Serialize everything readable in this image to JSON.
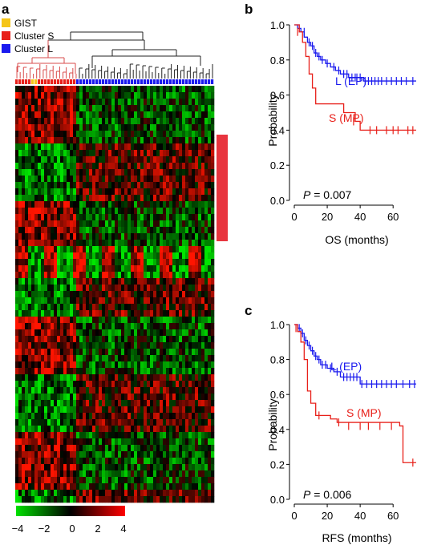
{
  "panel_a": {
    "letter": "a",
    "legend": [
      {
        "label": "GIST",
        "color": "#f5c518"
      },
      {
        "label": "Cluster S",
        "color": "#e8201a"
      },
      {
        "label": "Cluster L",
        "color": "#1a1aee"
      }
    ],
    "colorbar": {
      "ticks": [
        "−4",
        "−2",
        "0",
        "2",
        "4"
      ],
      "min": -4,
      "max": 4,
      "low_color": "#00e000",
      "mid_color": "#000000",
      "high_color": "#ff0000"
    },
    "highlight_bar_color": "#e8353f"
  },
  "chart_data": [
    {
      "panel": "b",
      "type": "line",
      "subtype": "kaplan-meier",
      "xlabel": "OS (months)",
      "ylabel": "Probability",
      "xlim": [
        0,
        75
      ],
      "ylim": [
        0,
        1.0
      ],
      "xticks": [
        "0",
        "20",
        "40",
        "60"
      ],
      "yticks": [
        "0.0",
        "0.2",
        "0.4",
        "0.6",
        "0.8",
        "1.0"
      ],
      "annotation_p": "P",
      "annotation_value": " = 0.007",
      "series": [
        {
          "name": "L (EP)",
          "color": "#1a1aee",
          "steps": [
            [
              0,
              1.0
            ],
            [
              2,
              0.98
            ],
            [
              4,
              0.96
            ],
            [
              6,
              0.93
            ],
            [
              8,
              0.9
            ],
            [
              10,
              0.88
            ],
            [
              12,
              0.84
            ],
            [
              14,
              0.82
            ],
            [
              16,
              0.8
            ],
            [
              19,
              0.78
            ],
            [
              22,
              0.76
            ],
            [
              25,
              0.74
            ],
            [
              28,
              0.72
            ],
            [
              33,
              0.7
            ],
            [
              42,
              0.68
            ],
            [
              74,
              0.68
            ]
          ],
          "censors": [
            [
              3,
              0.98
            ],
            [
              6,
              0.96
            ],
            [
              9,
              0.9
            ],
            [
              11,
              0.88
            ],
            [
              13,
              0.84
            ],
            [
              15,
              0.82
            ],
            [
              17,
              0.8
            ],
            [
              20,
              0.78
            ],
            [
              24,
              0.76
            ],
            [
              27,
              0.74
            ],
            [
              30,
              0.72
            ],
            [
              32,
              0.72
            ],
            [
              35,
              0.7
            ],
            [
              37,
              0.7
            ],
            [
              38,
              0.7
            ],
            [
              40,
              0.7
            ],
            [
              43,
              0.68
            ],
            [
              45,
              0.68
            ],
            [
              47,
              0.68
            ],
            [
              49,
              0.68
            ],
            [
              51,
              0.68
            ],
            [
              53,
              0.68
            ],
            [
              56,
              0.68
            ],
            [
              59,
              0.68
            ],
            [
              62,
              0.68
            ],
            [
              65,
              0.68
            ],
            [
              68,
              0.68
            ],
            [
              72,
              0.68
            ]
          ]
        },
        {
          "name": "S (MP)",
          "color": "#e8201a",
          "steps": [
            [
              0,
              1.0
            ],
            [
              3,
              0.96
            ],
            [
              5,
              0.9
            ],
            [
              7,
              0.82
            ],
            [
              9,
              0.72
            ],
            [
              11,
              0.64
            ],
            [
              13,
              0.55
            ],
            [
              30,
              0.5
            ],
            [
              37,
              0.45
            ],
            [
              40,
              0.4
            ],
            [
              74,
              0.4
            ]
          ],
          "censors": [
            [
              2,
              0.96
            ],
            [
              36,
              0.45
            ],
            [
              46,
              0.4
            ],
            [
              50,
              0.4
            ],
            [
              56,
              0.4
            ],
            [
              60,
              0.4
            ],
            [
              63,
              0.4
            ],
            [
              69,
              0.4
            ],
            [
              72,
              0.4
            ]
          ]
        }
      ],
      "curve_labels": [
        "L (EP)",
        "S (MP)"
      ]
    },
    {
      "panel": "c",
      "type": "line",
      "subtype": "kaplan-meier",
      "xlabel": "RFS (months)",
      "ylabel": "Probability",
      "xlim": [
        0,
        75
      ],
      "ylim": [
        0,
        1.0
      ],
      "xticks": [
        "0",
        "20",
        "40",
        "60"
      ],
      "yticks": [
        "0.0",
        "0.2",
        "0.4",
        "0.6",
        "0.8",
        "1.0"
      ],
      "annotation_p": "P",
      "annotation_value": " = 0.006",
      "series": [
        {
          "name": "L (EP)",
          "color": "#1a1aee",
          "steps": [
            [
              0,
              1.0
            ],
            [
              2,
              0.98
            ],
            [
              4,
              0.95
            ],
            [
              6,
              0.91
            ],
            [
              8,
              0.88
            ],
            [
              10,
              0.85
            ],
            [
              12,
              0.82
            ],
            [
              14,
              0.8
            ],
            [
              16,
              0.77
            ],
            [
              20,
              0.75
            ],
            [
              24,
              0.73
            ],
            [
              28,
              0.7
            ],
            [
              38,
              0.7
            ],
            [
              40,
              0.66
            ],
            [
              74,
              0.66
            ]
          ],
          "censors": [
            [
              3,
              0.98
            ],
            [
              5,
              0.95
            ],
            [
              7,
              0.91
            ],
            [
              9,
              0.88
            ],
            [
              11,
              0.85
            ],
            [
              13,
              0.82
            ],
            [
              15,
              0.8
            ],
            [
              17,
              0.77
            ],
            [
              19,
              0.77
            ],
            [
              22,
              0.75
            ],
            [
              26,
              0.73
            ],
            [
              30,
              0.7
            ],
            [
              32,
              0.7
            ],
            [
              34,
              0.7
            ],
            [
              36,
              0.7
            ],
            [
              38,
              0.7
            ],
            [
              41,
              0.66
            ],
            [
              44,
              0.66
            ],
            [
              47,
              0.66
            ],
            [
              50,
              0.66
            ],
            [
              53,
              0.66
            ],
            [
              56,
              0.66
            ],
            [
              59,
              0.66
            ],
            [
              62,
              0.66
            ],
            [
              66,
              0.66
            ],
            [
              70,
              0.66
            ],
            [
              73,
              0.66
            ]
          ]
        },
        {
          "name": "S (MP)",
          "color": "#e8201a",
          "steps": [
            [
              0,
              1.0
            ],
            [
              2,
              0.96
            ],
            [
              4,
              0.9
            ],
            [
              6,
              0.8
            ],
            [
              8,
              0.62
            ],
            [
              10,
              0.55
            ],
            [
              13,
              0.48
            ],
            [
              22,
              0.46
            ],
            [
              26,
              0.44
            ],
            [
              64,
              0.42
            ],
            [
              66,
              0.21
            ],
            [
              74,
              0.21
            ]
          ],
          "censors": [
            [
              1,
              0.98
            ],
            [
              15,
              0.48
            ],
            [
              27,
              0.44
            ],
            [
              33,
              0.42
            ],
            [
              40,
              0.42
            ],
            [
              45,
              0.42
            ],
            [
              52,
              0.42
            ],
            [
              59,
              0.42
            ],
            [
              72,
              0.21
            ]
          ]
        }
      ],
      "curve_labels": [
        "L (EP)",
        "S (MP)"
      ]
    }
  ]
}
